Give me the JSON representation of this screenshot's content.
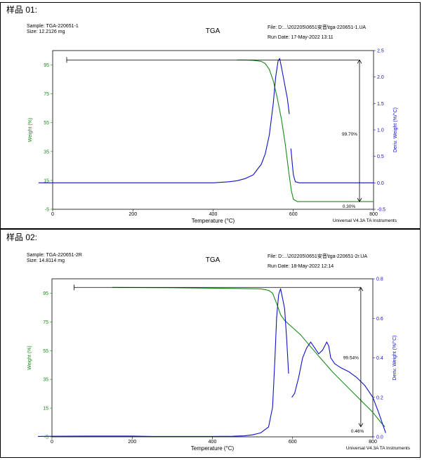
{
  "panels": [
    {
      "label": "样品 01:",
      "header": {
        "sample": "Sample: TGA-220651-1",
        "size": "Size:  12.2126 mg",
        "title": "TGA",
        "file": "File: D:...\\202205\\0651安音\\tga-220651-1.UA",
        "run_date": "Run Date: 17-May-2022 13:11"
      },
      "footer": "Universal V4.3A TA Instruments"
    },
    {
      "label": "样品 02:",
      "header": {
        "sample": "Sample: TGA-220651-2R",
        "size": "Size:  14.8114 mg",
        "title": "TGA",
        "file": "File: D:...\\202205\\0651安音\\tga-220651-2r.UA",
        "run_date": "Run Date: 18-May-2022 12:14"
      },
      "footer": "Universal V4.3A TA Instruments"
    }
  ],
  "chart_data": [
    {
      "type": "line",
      "xlabel": "Temperature (°C)",
      "ylabel": "Weight (%)",
      "y2label": "Deriv. Weight (%/°C)",
      "xlim": [
        0,
        800
      ],
      "ylim": [
        -5,
        105
      ],
      "y2lim": [
        -0.5,
        2.5
      ],
      "xticks": [
        "0",
        "200",
        "400",
        "600",
        "800"
      ],
      "yticks": [
        "-5",
        "15",
        "35",
        "55",
        "75",
        "95"
      ],
      "y2ticks": [
        "-0.5",
        "0.0",
        "0.5",
        "1.0",
        "1.5",
        "2.0",
        "2.5"
      ],
      "weight_color": "#1a8a1a",
      "deriv_color": "#1010c8",
      "annotations": [
        {
          "text": "99.70%",
          "x": 765,
          "y": 47
        },
        {
          "text": "0.30%",
          "x": 760,
          "y": -3
        }
      ],
      "series": [
        {
          "name": "Weight (%)",
          "axis": "left",
          "x": [
            460,
            480,
            500,
            520,
            530,
            540,
            550,
            560,
            570,
            580,
            590,
            595,
            600,
            610,
            640,
            700,
            760,
            800
          ],
          "y": [
            98.5,
            98.5,
            98.3,
            97.5,
            96,
            92,
            84,
            72,
            58,
            40,
            18,
            8,
            2,
            0.3,
            0.3,
            0.3,
            0.3,
            0.3
          ]
        },
        {
          "name": "Deriv. Weight (%/°C)",
          "axis": "right",
          "x": [
            -35,
            100,
            200,
            300,
            400,
            420,
            440,
            460,
            480,
            500,
            520,
            530,
            540,
            550,
            556,
            562,
            566,
            570,
            575,
            580,
            585,
            590,
            null,
            594,
            597,
            600,
            605,
            615,
            700,
            800
          ],
          "y": [
            0.0,
            0.0,
            0.0,
            0.0,
            0.0,
            0.01,
            0.02,
            0.04,
            0.08,
            0.15,
            0.35,
            0.55,
            0.9,
            1.5,
            2.0,
            2.3,
            2.35,
            2.2,
            2.0,
            1.8,
            1.6,
            1.3,
            null,
            0.65,
            0.4,
            0.15,
            0.02,
            0.0,
            0.0,
            0.0
          ]
        }
      ]
    },
    {
      "type": "line",
      "xlabel": "Temperature (°C)",
      "ylabel": "Weight (%)",
      "y2label": "Deriv. Weight (%/°C)",
      "xlim": [
        0,
        800
      ],
      "ylim": [
        -5,
        105
      ],
      "y2lim": [
        0.0,
        0.8
      ],
      "xticks": [
        "0",
        "200",
        "400",
        "600",
        "800"
      ],
      "yticks": [
        "-5",
        "15",
        "35",
        "55",
        "75",
        "95"
      ],
      "y2ticks": [
        "0.0",
        "0.2",
        "0.4",
        "0.6",
        "0.8"
      ],
      "weight_color": "#1a8a1a",
      "deriv_color": "#1010c8",
      "annotations": [
        {
          "text": "99.54%",
          "x": 770,
          "y": 50
        },
        {
          "text": "0.46%",
          "x": 783,
          "y": -1
        }
      ],
      "series": [
        {
          "name": "Weight (%)",
          "axis": "left",
          "x": [
            150,
            300,
            450,
            520,
            540,
            550,
            560,
            570,
            580,
            600,
            620,
            650,
            700,
            750,
            800,
            820,
            830
          ],
          "y": [
            99,
            98.8,
            98.3,
            98,
            97,
            95,
            88,
            80,
            76,
            71,
            66,
            56,
            40,
            26,
            12,
            5,
            2
          ]
        },
        {
          "name": "Deriv. Weight (%/°C)",
          "axis": "right",
          "x": [
            -35,
            0,
            100,
            200,
            250,
            300,
            400,
            450,
            480,
            500,
            520,
            540,
            550,
            556,
            560,
            565,
            570,
            575,
            580,
            585,
            590,
            null,
            598,
            605,
            615,
            625,
            635,
            645,
            655,
            665,
            675,
            685,
            690,
            695,
            705,
            720,
            740,
            760,
            780,
            800,
            815,
            825,
            832
          ],
          "y": [
            0.002,
            0.003,
            0.004,
            0.004,
            0.002,
            0.002,
            0.002,
            0.003,
            0.005,
            0.01,
            0.02,
            0.05,
            0.15,
            0.4,
            0.6,
            0.72,
            0.75,
            0.7,
            0.65,
            0.5,
            0.32,
            null,
            0.2,
            0.22,
            0.3,
            0.4,
            0.45,
            0.48,
            0.45,
            0.42,
            0.44,
            0.48,
            0.46,
            0.4,
            0.37,
            0.35,
            0.33,
            0.3,
            0.26,
            0.2,
            0.12,
            0.06,
            0.02
          ]
        }
      ]
    }
  ]
}
